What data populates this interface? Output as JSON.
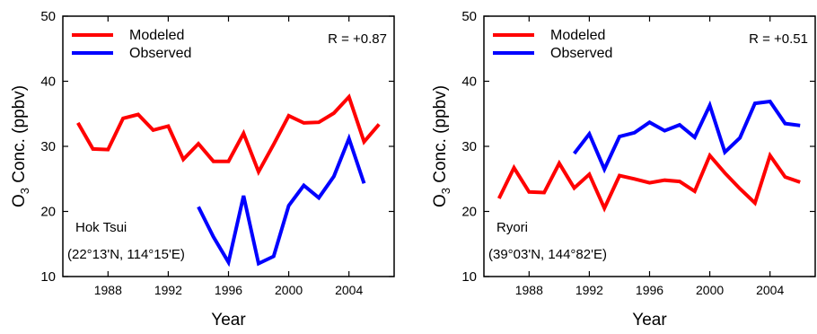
{
  "chart_data": [
    {
      "type": "line",
      "xlabel": "Year",
      "ylabel": "O3 Conc. (ppbv)",
      "ylabel_parts": {
        "main": "O",
        "sub": "3",
        "rest": " Conc. (ppbv)"
      },
      "xlim": [
        1985,
        2007
      ],
      "ylim": [
        10,
        50
      ],
      "xticks": [
        1988,
        1992,
        1996,
        2000,
        2004
      ],
      "yticks": [
        10,
        20,
        30,
        40,
        50
      ],
      "legend_placement": "top-left",
      "r_label": "R = +0.87",
      "site_name": "Hok Tsui",
      "site_coords": "(22°13'N, 114°15'E)",
      "series": [
        {
          "name": "Modeled",
          "color": "#ff0000",
          "x": [
            1986,
            1987,
            1988,
            1989,
            1990,
            1991,
            1992,
            1993,
            1994,
            1995,
            1996,
            1997,
            1998,
            1999,
            2000,
            2001,
            2002,
            2003,
            2004,
            2005,
            2006
          ],
          "values": [
            33.6,
            29.6,
            29.5,
            34.3,
            34.9,
            32.5,
            33.1,
            28.0,
            30.4,
            27.7,
            27.7,
            32.0,
            26.1,
            30.3,
            34.7,
            33.6,
            33.7,
            35.1,
            37.6,
            30.7,
            33.4
          ]
        },
        {
          "name": "Observed",
          "color": "#0000ff",
          "x": [
            1994,
            1995,
            1996,
            1997,
            1998,
            1999,
            2000,
            2001,
            2002,
            2003,
            2004,
            2005
          ],
          "values": [
            20.7,
            16.1,
            12.2,
            22.4,
            12.0,
            13.1,
            20.9,
            24.0,
            22.1,
            25.4,
            31.2,
            24.3
          ]
        }
      ]
    },
    {
      "type": "line",
      "xlabel": "Year",
      "ylabel": "O3 Conc. (ppbv)",
      "ylabel_parts": {
        "main": "O",
        "sub": "3",
        "rest": " Conc. (ppbv)"
      },
      "xlim": [
        1985,
        2007
      ],
      "ylim": [
        10,
        50
      ],
      "xticks": [
        1988,
        1992,
        1996,
        2000,
        2004
      ],
      "yticks": [
        10,
        20,
        30,
        40,
        50
      ],
      "legend_placement": "top-left",
      "r_label": "R = +0.51",
      "site_name": "Ryori",
      "site_coords": "(39°03'N, 144°82'E)",
      "series": [
        {
          "name": "Modeled",
          "color": "#ff0000",
          "x": [
            1986,
            1987,
            1988,
            1989,
            1990,
            1991,
            1992,
            1993,
            1994,
            1995,
            1996,
            1997,
            1998,
            1999,
            2000,
            2001,
            2002,
            2003,
            2004,
            2005,
            2006
          ],
          "values": [
            22.0,
            26.7,
            23.0,
            22.9,
            27.4,
            23.6,
            25.7,
            20.5,
            25.5,
            25.0,
            24.4,
            24.8,
            24.6,
            23.1,
            28.6,
            25.9,
            23.5,
            21.3,
            28.6,
            25.3,
            24.5
          ]
        },
        {
          "name": "Observed",
          "color": "#0000ff",
          "x": [
            1991,
            1992,
            1993,
            1994,
            1995,
            1996,
            1997,
            1998,
            1999,
            2000,
            2001,
            2002,
            2003,
            2004,
            2005,
            2006
          ],
          "values": [
            28.9,
            31.9,
            26.5,
            31.5,
            32.1,
            33.7,
            32.4,
            33.3,
            31.4,
            36.3,
            29.1,
            31.3,
            36.6,
            36.9,
            33.5,
            33.2
          ]
        }
      ]
    }
  ]
}
